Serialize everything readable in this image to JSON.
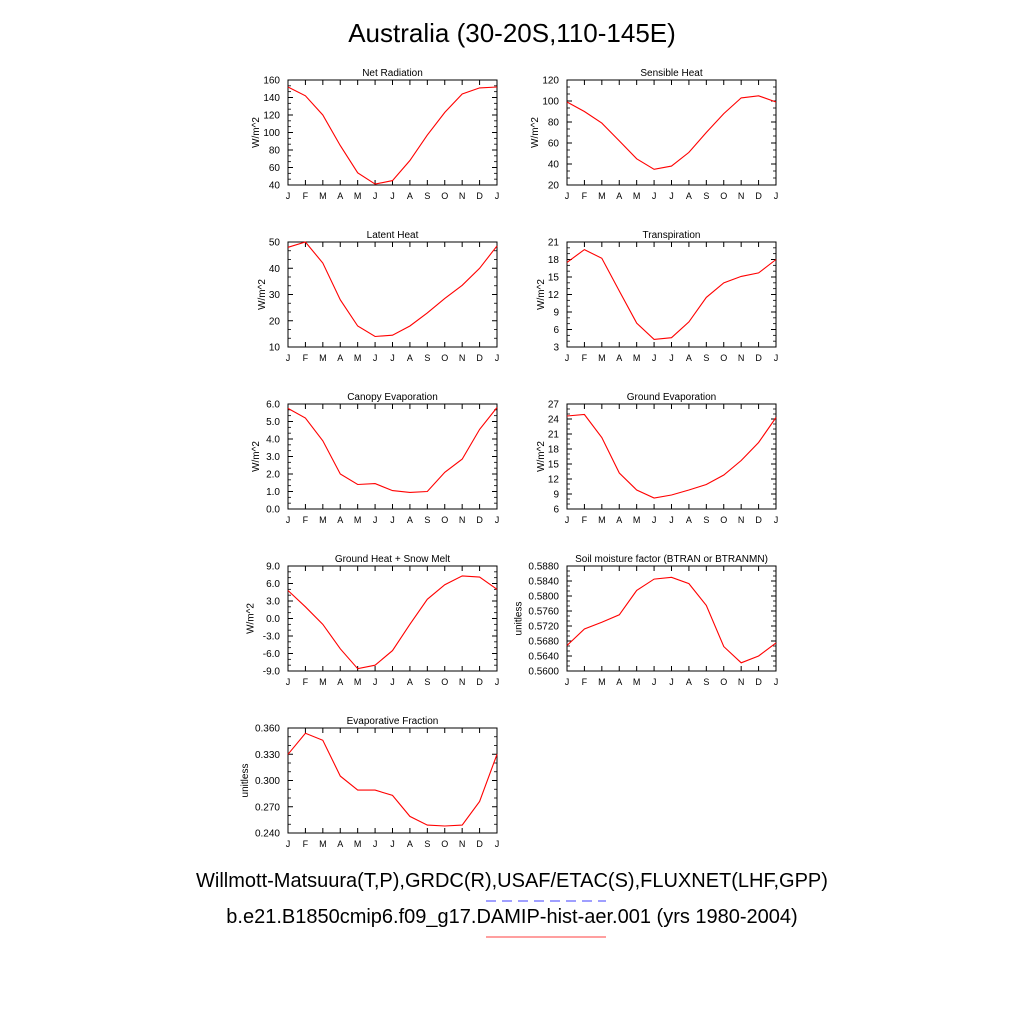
{
  "page": {
    "title": "Australia (30-20S,110-145E)"
  },
  "legend": {
    "entries": [
      {
        "label": "Willmott-Matsuura(T,P),GRDC(R),USAF/ETAC(S),FLUXNET(LHF,GPP)",
        "color": "#6666ff",
        "style": "dashed"
      },
      {
        "label": "b.e21.B1850cmip6.f09_g17.DAMIP-hist-aer.001 (yrs 1980-2004)",
        "color": "#ff6666",
        "style": "solid"
      }
    ]
  },
  "chart_data": [
    {
      "type": "line",
      "title": "Net Radiation",
      "ylabel": "W/m^2",
      "x": [
        "J",
        "F",
        "M",
        "A",
        "M",
        "J",
        "J",
        "A",
        "S",
        "O",
        "N",
        "D",
        "J"
      ],
      "ylim": [
        40,
        160
      ],
      "yticks": [
        "40",
        "60",
        "80",
        "100",
        "120",
        "140",
        "160"
      ],
      "series": [
        {
          "color": "#ff0000",
          "values": [
            152,
            142,
            120,
            85,
            54,
            41,
            45,
            68,
            97,
            123,
            144,
            151,
            152
          ]
        }
      ]
    },
    {
      "type": "line",
      "title": "Sensible Heat",
      "ylabel": "W/m^2",
      "x": [
        "J",
        "F",
        "M",
        "A",
        "M",
        "J",
        "J",
        "A",
        "S",
        "O",
        "N",
        "D",
        "J"
      ],
      "ylim": [
        20,
        120
      ],
      "yticks": [
        "20",
        "40",
        "60",
        "80",
        "100",
        "120"
      ],
      "series": [
        {
          "color": "#ff0000",
          "values": [
            99,
            90,
            79,
            62,
            45,
            35,
            38,
            51,
            70,
            88,
            103,
            105,
            99
          ]
        }
      ]
    },
    {
      "type": "line",
      "title": "Latent Heat",
      "ylabel": "W/m^2",
      "x": [
        "J",
        "F",
        "M",
        "A",
        "M",
        "J",
        "J",
        "A",
        "S",
        "O",
        "N",
        "D",
        "J"
      ],
      "ylim": [
        10,
        50
      ],
      "yticks": [
        "10",
        "20",
        "30",
        "40",
        "50"
      ],
      "series": [
        {
          "color": "#ff0000",
          "values": [
            48,
            50,
            42,
            28,
            18,
            14,
            14.5,
            18,
            23,
            28.5,
            33.5,
            40,
            48.5
          ]
        }
      ]
    },
    {
      "type": "line",
      "title": "Transpiration",
      "ylabel": "W/m^2",
      "x": [
        "J",
        "F",
        "M",
        "A",
        "M",
        "J",
        "J",
        "A",
        "S",
        "O",
        "N",
        "D",
        "J"
      ],
      "ylim": [
        3,
        21
      ],
      "yticks": [
        "3",
        "6",
        "9",
        "12",
        "15",
        "18",
        "21"
      ],
      "series": [
        {
          "color": "#ff0000",
          "values": [
            17.5,
            19.7,
            18.2,
            12.6,
            7.1,
            4.3,
            4.6,
            7.3,
            11.5,
            14.0,
            15.1,
            15.7,
            18.0
          ]
        }
      ]
    },
    {
      "type": "line",
      "title": "Canopy Evaporation",
      "ylabel": "W/m^2",
      "x": [
        "J",
        "F",
        "M",
        "A",
        "M",
        "J",
        "J",
        "A",
        "S",
        "O",
        "N",
        "D",
        "J"
      ],
      "ylim": [
        0,
        6
      ],
      "yticks": [
        "0.0",
        "1.0",
        "2.0",
        "3.0",
        "4.0",
        "5.0",
        "6.0"
      ],
      "series": [
        {
          "color": "#ff0000",
          "values": [
            5.75,
            5.2,
            3.9,
            2.0,
            1.4,
            1.45,
            1.05,
            0.95,
            1.0,
            2.1,
            2.85,
            4.55,
            5.8
          ]
        }
      ]
    },
    {
      "type": "line",
      "title": "Ground Evaporation",
      "ylabel": "W/m^2",
      "x": [
        "J",
        "F",
        "M",
        "A",
        "M",
        "J",
        "J",
        "A",
        "S",
        "O",
        "N",
        "D",
        "J"
      ],
      "ylim": [
        6,
        27
      ],
      "yticks": [
        "6",
        "9",
        "12",
        "15",
        "18",
        "21",
        "24",
        "27"
      ],
      "series": [
        {
          "color": "#ff0000",
          "values": [
            24.6,
            24.9,
            20.3,
            13.2,
            9.8,
            8.2,
            8.8,
            9.8,
            10.9,
            12.8,
            15.7,
            19.3,
            24.3
          ]
        }
      ]
    },
    {
      "type": "line",
      "title": "Ground Heat + Snow Melt",
      "ylabel": "W/m^2",
      "x": [
        "J",
        "F",
        "M",
        "A",
        "M",
        "J",
        "J",
        "A",
        "S",
        "O",
        "N",
        "D",
        "J"
      ],
      "ylim": [
        -9,
        9
      ],
      "yticks": [
        "-9.0",
        "-6.0",
        "-3.0",
        "0.0",
        "3.0",
        "6.0",
        "9.0"
      ],
      "series": [
        {
          "color": "#ff0000",
          "values": [
            4.8,
            2.0,
            -1.0,
            -5.2,
            -8.6,
            -8.0,
            -5.5,
            -1.0,
            3.3,
            5.8,
            7.3,
            7.1,
            5.0
          ]
        }
      ]
    },
    {
      "type": "line",
      "title": "Soil moisture factor (BTRAN or BTRANMN)",
      "ylabel": "unitless",
      "x": [
        "J",
        "F",
        "M",
        "A",
        "M",
        "J",
        "J",
        "A",
        "S",
        "O",
        "N",
        "D",
        "J"
      ],
      "ylim": [
        0.56,
        0.588
      ],
      "yticks": [
        "0.5600",
        "0.5640",
        "0.5680",
        "0.5720",
        "0.5760",
        "0.5800",
        "0.5840",
        "0.5880"
      ],
      "series": [
        {
          "color": "#ff0000",
          "values": [
            0.5668,
            0.5712,
            0.573,
            0.575,
            0.5815,
            0.5845,
            0.585,
            0.5833,
            0.5775,
            0.5665,
            0.5622,
            0.564,
            0.5675
          ]
        }
      ]
    },
    {
      "type": "line",
      "title": "Evaporative Fraction",
      "ylabel": "unitless",
      "x": [
        "J",
        "F",
        "M",
        "A",
        "M",
        "J",
        "J",
        "A",
        "S",
        "O",
        "N",
        "D",
        "J"
      ],
      "ylim": [
        0.24,
        0.36
      ],
      "yticks": [
        "0.240",
        "0.270",
        "0.300",
        "0.330",
        "0.360"
      ],
      "series": [
        {
          "color": "#ff0000",
          "values": [
            0.33,
            0.354,
            0.346,
            0.305,
            0.289,
            0.289,
            0.283,
            0.259,
            0.249,
            0.248,
            0.249,
            0.276,
            0.33
          ]
        }
      ]
    }
  ]
}
